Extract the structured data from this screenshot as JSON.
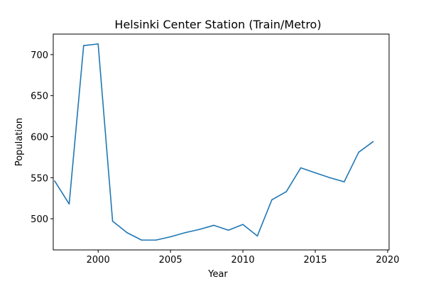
{
  "chart_data": {
    "type": "line",
    "title": "Helsinki Center Station (Train/Metro)",
    "xlabel": "Year",
    "ylabel": "Population",
    "xlim": [
      1996.9,
      2020.1
    ],
    "ylim": [
      462,
      725
    ],
    "xticks": [
      2000,
      2005,
      2010,
      2015,
      2020
    ],
    "yticks": [
      500,
      550,
      600,
      650,
      700
    ],
    "grid": false,
    "line_color": "#1f77b4",
    "x": [
      1997,
      1998,
      1999,
      2000,
      2001,
      2002,
      2003,
      2004,
      2005,
      2006,
      2007,
      2008,
      2009,
      2010,
      2011,
      2012,
      2013,
      2014,
      2015,
      2016,
      2017,
      2018,
      2019
    ],
    "y": [
      546,
      518,
      711,
      713,
      497,
      483,
      474,
      474,
      478,
      483,
      487,
      492,
      486,
      493,
      479,
      523,
      533,
      562,
      556,
      550,
      545,
      581,
      594
    ]
  }
}
